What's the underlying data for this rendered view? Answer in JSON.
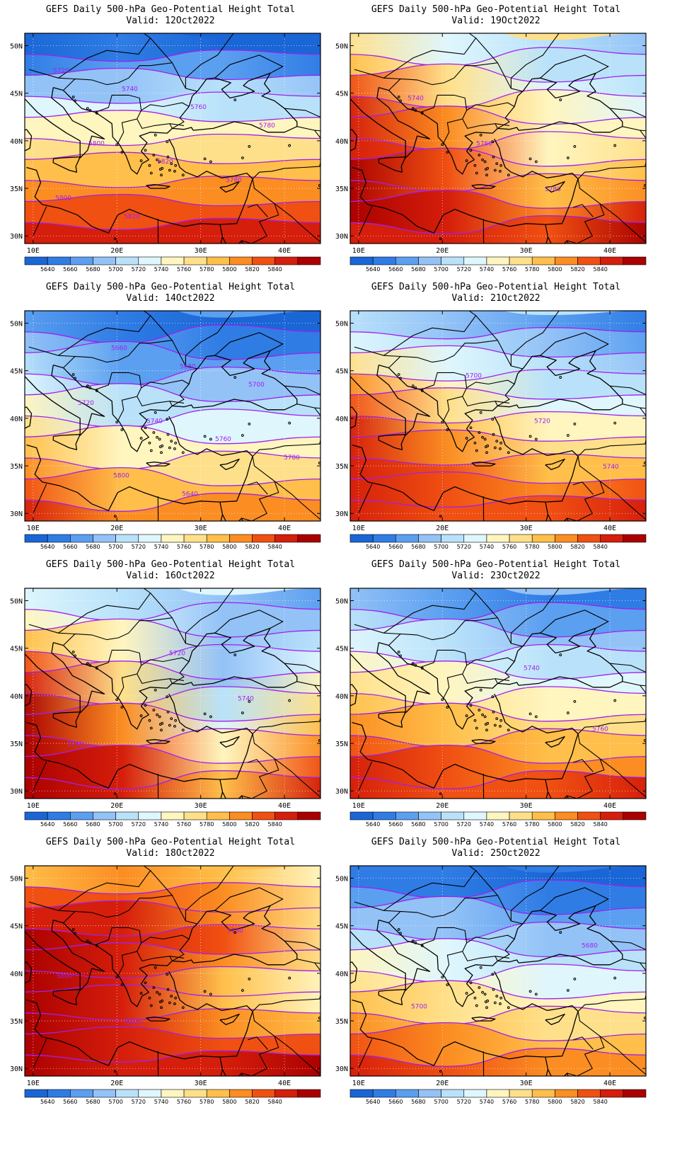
{
  "colorbar": {
    "levels": [
      "5640",
      "5660",
      "5680",
      "5700",
      "5720",
      "5740",
      "5760",
      "5780",
      "5800",
      "5820",
      "5840"
    ],
    "colors": [
      "#1a66d6",
      "#2f7ce5",
      "#5b9ff0",
      "#93c2f7",
      "#b9e2fa",
      "#dff6fd",
      "#fff5bf",
      "#ffe08a",
      "#ffbf4a",
      "#fb8d22",
      "#f05012",
      "#d51e0b",
      "#aa0000"
    ]
  },
  "axes": {
    "lat_labels": [
      "50N",
      "45N",
      "40N",
      "35N",
      "30N"
    ],
    "lon_labels": [
      "10E",
      "20E",
      "30E",
      "40E"
    ]
  },
  "panels": [
    {
      "title": "GEFS Daily 500-hPa Geo-Potential Height Total",
      "valid": "Valid: 12Oct2022",
      "bands": [
        [
          0,
          1,
          0,
          0
        ],
        [
          1,
          2,
          2,
          1
        ],
        [
          3,
          3,
          4,
          3
        ],
        [
          5,
          5,
          4,
          4
        ],
        [
          6,
          6,
          6,
          6
        ],
        [
          7,
          7,
          7,
          7
        ],
        [
          8,
          8,
          8,
          8
        ],
        [
          9,
          9,
          9,
          9
        ],
        [
          10,
          10,
          10,
          10
        ],
        [
          11,
          11,
          11,
          11
        ]
      ],
      "contour_labels": [
        "5720",
        "5740",
        "5760",
        "5780",
        "5800",
        "5820",
        "5780",
        "5800",
        "5820"
      ]
    },
    {
      "title": "GEFS Daily 500-hPa Geo-Potential Height Total",
      "valid": "Valid: 19Oct2022",
      "bands": [
        [
          7,
          5,
          4,
          3
        ],
        [
          8,
          6,
          4,
          4
        ],
        [
          10,
          7,
          5,
          4
        ],
        [
          11,
          8,
          6,
          5
        ],
        [
          11,
          9,
          6,
          6
        ],
        [
          11,
          10,
          6,
          7
        ],
        [
          12,
          10,
          7,
          8
        ],
        [
          12,
          10,
          8,
          9
        ],
        [
          12,
          11,
          9,
          11
        ],
        [
          11,
          11,
          10,
          12
        ]
      ],
      "contour_labels": [
        "5740",
        "5760",
        "5780"
      ]
    },
    {
      "title": "GEFS Daily 500-hPa Geo-Potential Height Total",
      "valid": "Valid: 14Oct2022",
      "bands": [
        [
          2,
          1,
          0,
          0
        ],
        [
          3,
          2,
          1,
          1
        ],
        [
          4,
          2,
          2,
          2
        ],
        [
          5,
          3,
          3,
          3
        ],
        [
          6,
          4,
          4,
          4
        ],
        [
          7,
          5,
          5,
          5
        ],
        [
          8,
          6,
          6,
          6
        ],
        [
          9,
          7,
          7,
          7
        ],
        [
          10,
          8,
          8,
          8
        ],
        [
          11,
          9,
          9,
          9
        ]
      ],
      "contour_labels": [
        "5660",
        "5680",
        "5700",
        "5720",
        "5740",
        "5760",
        "5780",
        "5800",
        "5640"
      ]
    },
    {
      "title": "GEFS Daily 500-hPa Geo-Potential Height Total",
      "valid": "Valid: 21Oct2022",
      "bands": [
        [
          4,
          3,
          2,
          1
        ],
        [
          5,
          4,
          3,
          2
        ],
        [
          7,
          5,
          4,
          3
        ],
        [
          9,
          6,
          4,
          4
        ],
        [
          10,
          7,
          5,
          5
        ],
        [
          11,
          8,
          6,
          6
        ],
        [
          11,
          9,
          7,
          7
        ],
        [
          11,
          10,
          8,
          8
        ],
        [
          11,
          10,
          9,
          10
        ],
        [
          11,
          10,
          10,
          11
        ]
      ],
      "contour_labels": [
        "5700",
        "5720",
        "5740"
      ]
    },
    {
      "title": "GEFS Daily 500-hPa Geo-Potential Height Total",
      "valid": "Valid: 16Oct2022",
      "bands": [
        [
          5,
          4,
          3,
          2
        ],
        [
          6,
          5,
          3,
          3
        ],
        [
          8,
          6,
          3,
          4
        ],
        [
          10,
          6,
          3,
          5
        ],
        [
          11,
          7,
          3,
          6
        ],
        [
          12,
          8,
          4,
          7
        ],
        [
          12,
          9,
          5,
          8
        ],
        [
          12,
          10,
          6,
          9
        ],
        [
          12,
          11,
          7,
          10
        ],
        [
          12,
          11,
          8,
          11
        ]
      ],
      "contour_labels": [
        "5720",
        "5740",
        "5760"
      ]
    },
    {
      "title": "GEFS Daily 500-hPa Geo-Potential Height Total",
      "valid": "Valid: 23Oct2022",
      "bands": [
        [
          3,
          2,
          1,
          1
        ],
        [
          4,
          3,
          2,
          2
        ],
        [
          5,
          4,
          3,
          3
        ],
        [
          6,
          5,
          4,
          4
        ],
        [
          7,
          6,
          5,
          5
        ],
        [
          8,
          7,
          6,
          6
        ],
        [
          9,
          8,
          7,
          7
        ],
        [
          10,
          9,
          8,
          8
        ],
        [
          11,
          10,
          9,
          9
        ],
        [
          11,
          10,
          10,
          11
        ]
      ],
      "contour_labels": [
        "5740",
        "5760"
      ]
    },
    {
      "title": "GEFS Daily 500-hPa Geo-Potential Height Total",
      "valid": "Valid: 18Oct2022",
      "bands": [
        [
          8,
          9,
          8,
          6
        ],
        [
          10,
          10,
          9,
          7
        ],
        [
          11,
          11,
          9,
          7
        ],
        [
          12,
          11,
          10,
          7
        ],
        [
          12,
          11,
          9,
          7
        ],
        [
          12,
          11,
          8,
          6
        ],
        [
          12,
          11,
          8,
          6
        ],
        [
          12,
          11,
          9,
          8
        ],
        [
          12,
          11,
          10,
          10
        ],
        [
          12,
          11,
          11,
          12
        ]
      ],
      "contour_labels": [
        "5780",
        "5800",
        "5820"
      ]
    },
    {
      "title": "GEFS Daily 500-hPa Geo-Potential Height Total",
      "valid": "Valid: 25Oct2022",
      "bands": [
        [
          1,
          1,
          0,
          0
        ],
        [
          2,
          2,
          1,
          1
        ],
        [
          3,
          3,
          2,
          2
        ],
        [
          4,
          4,
          3,
          3
        ],
        [
          6,
          5,
          4,
          4
        ],
        [
          7,
          6,
          5,
          5
        ],
        [
          8,
          7,
          6,
          6
        ],
        [
          9,
          8,
          7,
          7
        ],
        [
          10,
          9,
          8,
          8
        ],
        [
          11,
          10,
          9,
          9
        ]
      ],
      "contour_labels": [
        "5680",
        "5700"
      ]
    }
  ]
}
